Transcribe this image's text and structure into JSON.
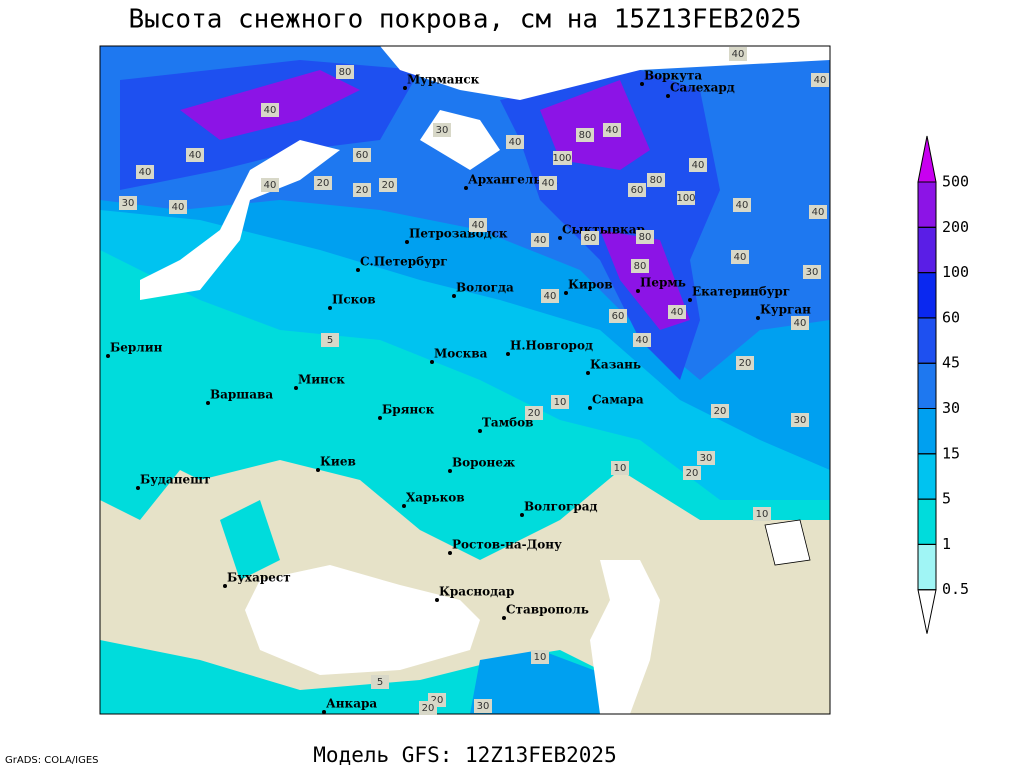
{
  "header": {
    "title": "Высота снежного покрова, см на 15Z13FEB2025"
  },
  "footer": {
    "model": "Модель GFS: 12Z13FEB2025",
    "credit": "GrADS: COLA/IGES"
  },
  "legend": {
    "levels": [
      0.5,
      1,
      5,
      15,
      30,
      45,
      60,
      100,
      200,
      500
    ],
    "colors": [
      "#ffffff",
      "#a0f5f5",
      "#00dcdc",
      "#00c3f0",
      "#00a0f0",
      "#1e78f0",
      "#1e50f0",
      "#0a28f0",
      "#5a1ee6",
      "#8c14e6",
      "#c800f0"
    ]
  },
  "cities": [
    "Мурманск",
    "Воркута",
    "Салехард",
    "Архангельск",
    "Сыктывкар",
    "Петрозаводск",
    "С.Петербург",
    "Вологда",
    "Киров",
    "Пермь",
    "Екатеринбург",
    "Курган",
    "Псков",
    "Берлин",
    "Н.Новгород",
    "Москва",
    "Казань",
    "Минск",
    "Варшава",
    "Брянск",
    "Тамбов",
    "Самара",
    "Киев",
    "Воронеж",
    "Будапешт",
    "Харьков",
    "Волгоград",
    "Ростов-на-Дону",
    "Бухарест",
    "Краснодар",
    "Ставрополь",
    "Анкара"
  ],
  "contour_labels": [
    40,
    40,
    80,
    40,
    30,
    80,
    40,
    40,
    60,
    40,
    40,
    60,
    20,
    20,
    40,
    30,
    40,
    20,
    100,
    80,
    40,
    60,
    80,
    100,
    40,
    40,
    40,
    40,
    60,
    40,
    30,
    40,
    40,
    60,
    40,
    40,
    20,
    5,
    20,
    10,
    20,
    30,
    30,
    20,
    10,
    10,
    5,
    10,
    20,
    20,
    30,
    40,
    80
  ]
}
